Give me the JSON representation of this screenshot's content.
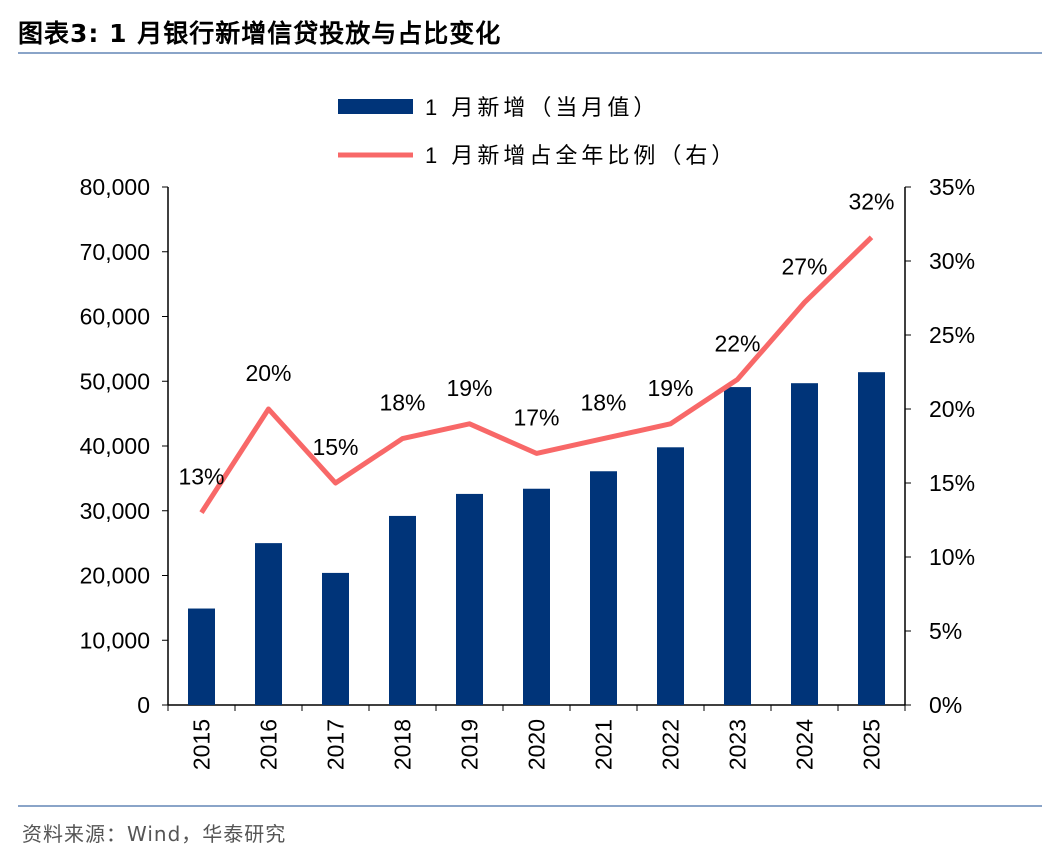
{
  "header": {
    "title": "图表3:  1 月银行新增信贷投放与占比变化"
  },
  "footer": {
    "source": "资料来源：Wind，华泰研究"
  },
  "chart_data": {
    "type": "bar+line",
    "categories": [
      "2015",
      "2016",
      "2017",
      "2018",
      "2019",
      "2020",
      "2021",
      "2022",
      "2023",
      "2024",
      "2025"
    ],
    "series": [
      {
        "name": "1 月新增（当月值）",
        "type": "bar",
        "axis": "left",
        "color": "#003479",
        "values": [
          14900,
          25000,
          20400,
          29200,
          32600,
          33400,
          36100,
          39800,
          49100,
          49700,
          51400
        ]
      },
      {
        "name": "1 月新增占全年比例（右）",
        "type": "line",
        "axis": "right",
        "color": "#f86868",
        "values": [
          13,
          20,
          15,
          18,
          19,
          17,
          18,
          19,
          22,
          27.2,
          31.6
        ],
        "data_labels": [
          "13%",
          "20%",
          "15%",
          "18%",
          "19%",
          "17%",
          "18%",
          "19%",
          "22%",
          "27%",
          "32%"
        ]
      }
    ],
    "y_left": {
      "range": [
        0,
        80000
      ],
      "ticks": [
        "0",
        "10,000",
        "20,000",
        "30,000",
        "40,000",
        "50,000",
        "60,000",
        "70,000",
        "80,000"
      ]
    },
    "y_right": {
      "range": [
        0,
        35
      ],
      "ticks": [
        "0%",
        "5%",
        "10%",
        "15%",
        "20%",
        "25%",
        "30%",
        "35%"
      ]
    },
    "grid": false,
    "legend": "top-center"
  }
}
